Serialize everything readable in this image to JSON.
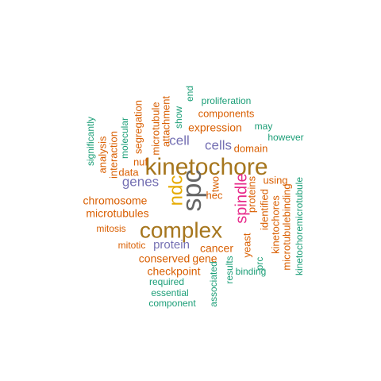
{
  "palette": {
    "orange": "#D95F02",
    "teal": "#1B9E77",
    "purple": "#7570B3",
    "gold": "#A6761D",
    "magenta": "#E7298A",
    "yellow": "#E6AB02",
    "gray": "#666666"
  },
  "words": [
    {
      "text": "kinetochore",
      "color": "gold"
    },
    {
      "text": "complex",
      "color": "gold"
    },
    {
      "text": "spc",
      "color": "gray"
    },
    {
      "text": "ndc",
      "color": "yellow"
    },
    {
      "text": "spindle",
      "color": "magenta"
    },
    {
      "text": "expression",
      "color": "orange"
    },
    {
      "text": "genes",
      "color": "purple"
    },
    {
      "text": "cell",
      "color": "purple"
    },
    {
      "text": "cells",
      "color": "purple"
    },
    {
      "text": "protein",
      "color": "purple"
    },
    {
      "text": "chromosome",
      "color": "orange"
    },
    {
      "text": "microtubules",
      "color": "orange"
    },
    {
      "text": "cancer",
      "color": "orange"
    },
    {
      "text": "conserved",
      "color": "orange"
    },
    {
      "text": "gene",
      "color": "orange"
    },
    {
      "text": "checkpoint",
      "color": "orange"
    },
    {
      "text": "components",
      "color": "orange"
    },
    {
      "text": "domain",
      "color": "orange"
    },
    {
      "text": "hec",
      "color": "orange"
    },
    {
      "text": "using",
      "color": "orange"
    },
    {
      "text": "mitosis",
      "color": "orange"
    },
    {
      "text": "mitotic",
      "color": "orange"
    },
    {
      "text": "nuf",
      "color": "orange"
    },
    {
      "text": "data",
      "color": "orange"
    },
    {
      "text": "two",
      "color": "orange"
    },
    {
      "text": "proteins",
      "color": "orange"
    },
    {
      "text": "identified",
      "color": "orange"
    },
    {
      "text": "kinetochores",
      "color": "orange"
    },
    {
      "text": "microtubulebinding",
      "color": "orange"
    },
    {
      "text": "yeast",
      "color": "orange"
    },
    {
      "text": "segregation",
      "color": "orange"
    },
    {
      "text": "microtubule",
      "color": "orange"
    },
    {
      "text": "attachment",
      "color": "orange"
    },
    {
      "text": "interaction",
      "color": "orange"
    },
    {
      "text": "analysis",
      "color": "orange"
    },
    {
      "text": "proliferation",
      "color": "teal"
    },
    {
      "text": "may",
      "color": "teal"
    },
    {
      "text": "however",
      "color": "teal"
    },
    {
      "text": "end",
      "color": "teal"
    },
    {
      "text": "show",
      "color": "teal"
    },
    {
      "text": "molecular",
      "color": "teal"
    },
    {
      "text": "significantly",
      "color": "teal"
    },
    {
      "text": "required",
      "color": "teal"
    },
    {
      "text": "essential",
      "color": "teal"
    },
    {
      "text": "component",
      "color": "teal"
    },
    {
      "text": "associated",
      "color": "teal"
    },
    {
      "text": "results",
      "color": "teal"
    },
    {
      "text": "binding",
      "color": "teal"
    },
    {
      "text": "prc",
      "color": "teal"
    },
    {
      "text": "kinetochoremicrotubule",
      "color": "teal"
    }
  ]
}
